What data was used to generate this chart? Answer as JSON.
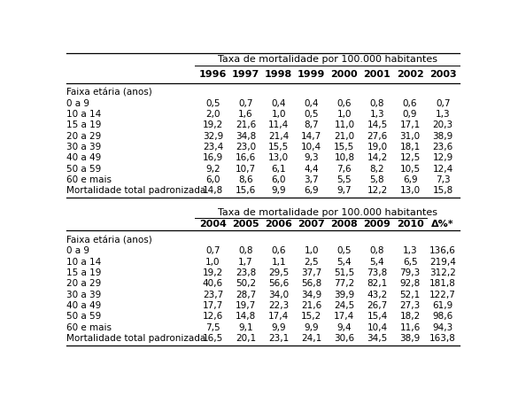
{
  "header": "Taxa de mortalidade por 100.000 habitantes",
  "years_top": [
    "1996",
    "1997",
    "1998",
    "1999",
    "2000",
    "2001",
    "2002",
    "2003"
  ],
  "years_bottom": [
    "2004",
    "2005",
    "2006",
    "2007",
    "2008",
    "2009",
    "2010",
    "Δ%*"
  ],
  "row_labels": [
    "Faixa etária (anos)",
    "0 a 9",
    "10 a 14",
    "15 a 19",
    "20 a 29",
    "30 a 39",
    "40 a 49",
    "50 a 59",
    "60 e mais",
    "Mortalidade total padronizada"
  ],
  "top_data": [
    [
      "0,5",
      "0,7",
      "0,4",
      "0,4",
      "0,6",
      "0,8",
      "0,6",
      "0,7"
    ],
    [
      "2,0",
      "1,6",
      "1,0",
      "0,5",
      "1,0",
      "1,3",
      "0,9",
      "1,3"
    ],
    [
      "19,2",
      "21,6",
      "11,4",
      "8,7",
      "11,0",
      "14,5",
      "17,1",
      "20,3"
    ],
    [
      "32,9",
      "34,8",
      "21,4",
      "14,7",
      "21,0",
      "27,6",
      "31,0",
      "38,9"
    ],
    [
      "23,4",
      "23,0",
      "15,5",
      "10,4",
      "15,5",
      "19,0",
      "18,1",
      "23,6"
    ],
    [
      "16,9",
      "16,6",
      "13,0",
      "9,3",
      "10,8",
      "14,2",
      "12,5",
      "12,9"
    ],
    [
      "9,2",
      "10,7",
      "6,1",
      "4,4",
      "7,6",
      "8,2",
      "10,5",
      "12,4"
    ],
    [
      "6,0",
      "8,6",
      "6,0",
      "3,7",
      "5,5",
      "5,8",
      "6,9",
      "7,3"
    ],
    [
      "14,8",
      "15,6",
      "9,9",
      "6,9",
      "9,7",
      "12,2",
      "13,0",
      "15,8"
    ]
  ],
  "bottom_data": [
    [
      "0,7",
      "0,8",
      "0,6",
      "1,0",
      "0,5",
      "0,8",
      "1,3",
      "136,6"
    ],
    [
      "1,0",
      "1,7",
      "1,1",
      "2,5",
      "5,4",
      "5,4",
      "6,5",
      "219,4"
    ],
    [
      "19,2",
      "23,8",
      "29,5",
      "37,7",
      "51,5",
      "73,8",
      "79,3",
      "312,2"
    ],
    [
      "40,6",
      "50,2",
      "56,6",
      "56,8",
      "77,2",
      "82,1",
      "92,8",
      "181,8"
    ],
    [
      "23,7",
      "28,7",
      "34,0",
      "34,9",
      "39,9",
      "43,2",
      "52,1",
      "122,7"
    ],
    [
      "17,7",
      "19,7",
      "22,3",
      "21,6",
      "24,5",
      "26,7",
      "27,3",
      "61,9"
    ],
    [
      "12,6",
      "14,8",
      "17,4",
      "15,2",
      "17,4",
      "15,4",
      "18,2",
      "98,6"
    ],
    [
      "7,5",
      "9,1",
      "9,9",
      "9,9",
      "9,4",
      "10,4",
      "11,6",
      "94,3"
    ],
    [
      "16,5",
      "20,1",
      "23,1",
      "24,1",
      "30,6",
      "34,5",
      "38,9",
      "163,8"
    ]
  ],
  "figsize": [
    5.85,
    4.47
  ],
  "dpi": 100,
  "fontsize_data": 7.5,
  "fontsize_header": 8.0,
  "fontsize_years": 8.0
}
